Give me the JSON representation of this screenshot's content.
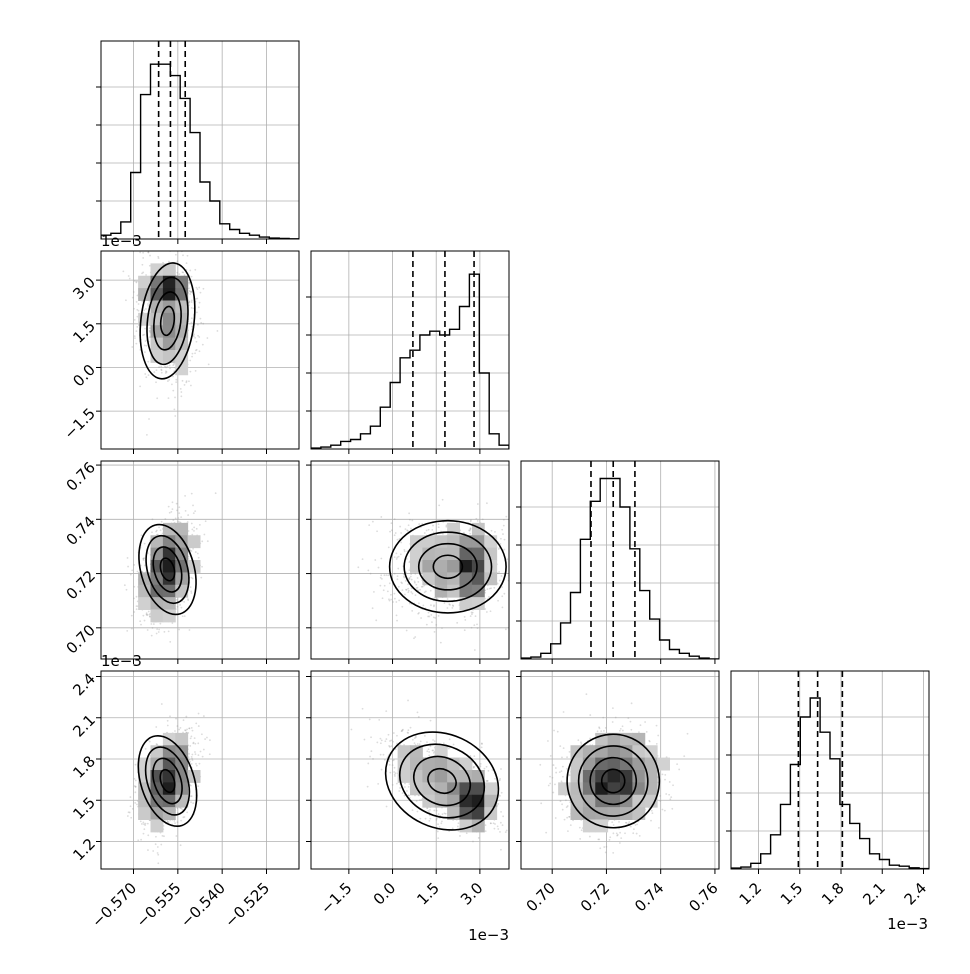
{
  "chart_data": {
    "type": "scatter",
    "subtype": "corner",
    "grid": true,
    "show_titles": false,
    "quantiles": [
      0.16,
      0.5,
      0.84
    ],
    "colors": {
      "line": "#000000",
      "grid": "#b0b0b0",
      "points": "#9a9a9a"
    },
    "parameters": [
      {
        "id": "p0",
        "range": [
          -0.581,
          -0.514
        ],
        "ticks": [
          -0.57,
          -0.555,
          -0.54,
          -0.525
        ],
        "tick_labels": [
          "−0.570",
          "−0.555",
          "−0.540",
          "−0.525"
        ],
        "offset_text": "",
        "median": -0.5575,
        "q16": -0.5615,
        "q84": -0.5525,
        "hist_peak": 1.0,
        "hist": [
          0.02,
          0.03,
          0.09,
          0.35,
          0.76,
          0.92,
          0.92,
          0.86,
          0.74,
          0.56,
          0.3,
          0.2,
          0.08,
          0.05,
          0.03,
          0.02,
          0.01,
          0.005,
          0.003,
          0.001
        ]
      },
      {
        "id": "p1",
        "range": [
          -2.8,
          4.0
        ],
        "ticks": [
          -1.5,
          0.0,
          1.5,
          3.0
        ],
        "tick_labels": [
          "−1.5",
          "0.0",
          "1.5",
          "3.0"
        ],
        "offset_text": "1e−3",
        "median": 1.8,
        "q16": 0.7,
        "q84": 2.8,
        "hist_peak": 1.0,
        "hist": [
          0.005,
          0.01,
          0.02,
          0.04,
          0.05,
          0.08,
          0.12,
          0.22,
          0.35,
          0.48,
          0.52,
          0.6,
          0.62,
          0.6,
          0.63,
          0.75,
          0.92,
          0.4,
          0.08,
          0.02
        ]
      },
      {
        "id": "p2",
        "range": [
          0.6885,
          0.7615
        ],
        "ticks": [
          0.7,
          0.72,
          0.74,
          0.76
        ],
        "tick_labels": [
          "0.70",
          "0.72",
          "0.74",
          "0.76"
        ],
        "offset_text": "",
        "median": 0.7225,
        "q16": 0.7143,
        "q84": 0.7305,
        "hist_peak": 1.0,
        "hist": [
          0.005,
          0.01,
          0.03,
          0.08,
          0.19,
          0.35,
          0.63,
          0.83,
          0.95,
          0.95,
          0.8,
          0.58,
          0.36,
          0.21,
          0.1,
          0.05,
          0.03,
          0.015,
          0.005,
          0.0
        ]
      },
      {
        "id": "p3",
        "range": [
          1.0,
          2.44
        ],
        "ticks": [
          1.2,
          1.5,
          1.8,
          2.1,
          2.4
        ],
        "tick_labels": [
          "1.2",
          "1.5",
          "1.8",
          "2.1",
          "2.4"
        ],
        "offset_text": "1e−3",
        "median": 1.63,
        "q16": 1.49,
        "q84": 1.81,
        "hist_peak": 1.0,
        "hist": [
          0.005,
          0.01,
          0.03,
          0.08,
          0.18,
          0.34,
          0.55,
          0.8,
          0.9,
          0.72,
          0.58,
          0.34,
          0.24,
          0.16,
          0.08,
          0.05,
          0.02,
          0.015,
          0.006,
          0.002
        ]
      }
    ],
    "pairs": [
      {
        "row": 1,
        "col": 0,
        "mean": [
          -0.5585,
          1.6
        ],
        "sd": [
          0.0045,
          1.0
        ],
        "rho": -0.15,
        "secondary": {
          "mean": [
            -0.558,
            2.75
          ],
          "sd": [
            0.004,
            0.25
          ],
          "weight": 0.35
        }
      },
      {
        "row": 2,
        "col": 0,
        "mean": [
          -0.5585,
          0.7215
        ],
        "sd": [
          0.0045,
          0.0085
        ],
        "rho": 0.35
      },
      {
        "row": 2,
        "col": 1,
        "mean": [
          1.9,
          0.7225
        ],
        "sd": [
          1.0,
          0.0085
        ],
        "rho": 0.0,
        "secondary": {
          "mean": [
            2.75,
            0.7225
          ],
          "sd": [
            0.25,
            0.007
          ],
          "weight": 0.35
        }
      },
      {
        "row": 3,
        "col": 0,
        "mean": [
          -0.5585,
          1.64
        ],
        "sd": [
          0.0045,
          0.17
        ],
        "rho": 0.4
      },
      {
        "row": 3,
        "col": 1,
        "mean": [
          1.7,
          1.64
        ],
        "sd": [
          1.0,
          0.17
        ],
        "rho": -0.55,
        "secondary": {
          "mean": [
            2.8,
            1.5
          ],
          "sd": [
            0.25,
            0.1
          ],
          "weight": 0.35
        }
      },
      {
        "row": 3,
        "col": 2,
        "mean": [
          0.7225,
          1.64
        ],
        "sd": [
          0.0085,
          0.17
        ],
        "rho": 0.1
      }
    ]
  }
}
